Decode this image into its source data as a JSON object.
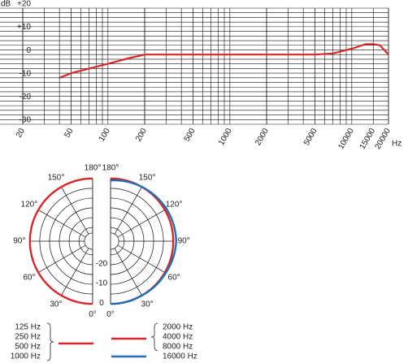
{
  "chart_data": [
    {
      "type": "line",
      "x_scale": "log",
      "x_label": "Hz",
      "y_label": "dB",
      "xlim": [
        20,
        20000
      ],
      "ylim": [
        -30,
        20
      ],
      "xticks": [
        20,
        50,
        100,
        200,
        500,
        1000,
        2000,
        5000,
        10000,
        15000,
        20000
      ],
      "yticks": [
        {
          "value": 20,
          "label": "+20"
        },
        {
          "value": 10,
          "label": "+10"
        },
        0,
        -10,
        -20,
        -30
      ],
      "grid": true,
      "x": [
        40,
        50,
        70,
        100,
        150,
        200,
        500,
        1000,
        2000,
        5000,
        7000,
        10000,
        13000,
        15000,
        17000,
        20000
      ],
      "series": [
        {
          "color": "#d9262b",
          "values": [
            -10,
            -8,
            -6,
            -4,
            -1.5,
            0,
            0,
            0,
            0,
            0,
            0.5,
            2.5,
            4.5,
            4.5,
            4,
            0
          ]
        }
      ]
    },
    {
      "type": "polar",
      "angles": [
        {
          "value": 0,
          "label": "0°"
        },
        {
          "value": 30,
          "label": "30°"
        },
        {
          "value": 60,
          "label": "60°"
        },
        {
          "value": 90,
          "label": "90°"
        },
        {
          "value": 120,
          "label": "120°"
        },
        {
          "value": 150,
          "label": "150°"
        },
        {
          "value": 180,
          "label": "180°"
        }
      ],
      "rlim": [
        -32,
        2
      ],
      "rticks": [
        0,
        -10,
        -20
      ],
      "series": [
        {
          "names": [
            "125 Hz",
            "250 Hz",
            "500 Hz",
            "1000 Hz"
          ],
          "side": "left",
          "color": "#d9262b",
          "values": [
            0,
            0,
            0,
            0,
            0,
            0,
            0
          ]
        },
        {
          "names": [
            "2000 Hz",
            "4000 Hz",
            "8000 Hz"
          ],
          "side": "right",
          "color": "#d9262b",
          "values": [
            0,
            0,
            0,
            0,
            0,
            0,
            0
          ]
        },
        {
          "names": [
            "16000 Hz"
          ],
          "side": "right",
          "color": "#1f6fb5",
          "values": [
            0,
            0,
            0.5,
            1.5,
            1,
            0,
            -1
          ]
        }
      ]
    }
  ]
}
